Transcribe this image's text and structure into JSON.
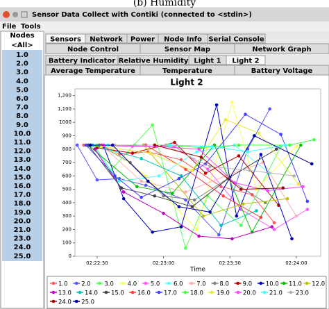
{
  "caption": "(b) Humidity",
  "window": {
    "title": "Sensor Data Collect with Contiki (connected to <stdin>)"
  },
  "menu": [
    "File",
    "Tools"
  ],
  "nodes": {
    "header": "Nodes",
    "all": "<All>",
    "items": [
      "1.0",
      "2.0",
      "3.0",
      "4.0",
      "5.0",
      "6.0",
      "7.0",
      "8.0",
      "9.0",
      "10.0",
      "11.0",
      "12.0",
      "13.0",
      "14.0",
      "15.0",
      "16.0",
      "17.0",
      "18.0",
      "19.0",
      "20.0",
      "21.0",
      "23.0",
      "24.0",
      "25.0"
    ]
  },
  "tabs": {
    "row1": [
      "Sensors",
      "Network",
      "Power",
      "Node Info",
      "Serial Console"
    ],
    "row2": [
      "Node Control",
      "Sensor Map",
      "Network Graph"
    ],
    "row3": [
      "Battery Indicator",
      "Relative Humidity",
      "Light 1",
      "Light 2"
    ],
    "row4": [
      "Average Temperature",
      "Temperature",
      "Battery Voltage"
    ]
  },
  "chart_data": {
    "type": "line",
    "title": "Light 2",
    "x_label": "Time",
    "xlim": [
      8540,
      8651
    ],
    "xticks": [
      {
        "value": 8550,
        "label": "02:22:30"
      },
      {
        "value": 8580,
        "label": "02:23:00"
      },
      {
        "value": 8610,
        "label": "02:23:30"
      },
      {
        "value": 8640,
        "label": "02:24:00"
      }
    ],
    "ylim": [
      0,
      1250
    ],
    "yticks": [
      0,
      100,
      200,
      300,
      400,
      500,
      600,
      700,
      800,
      900,
      1000,
      {
        "value": 1100,
        "label": "1,100"
      },
      {
        "value": 1200,
        "label": "1,200"
      }
    ],
    "grid": false,
    "series": [
      {
        "name": "1.0",
        "color": "#ff5555",
        "x": [
          8544,
          8553,
          8560,
          8573,
          8588,
          8606,
          8620,
          8630
        ],
        "values": [
          830,
          820,
          760,
          780,
          720,
          520,
          460,
          250
        ]
      },
      {
        "name": "2.0",
        "color": "#5555ff",
        "x": [
          8541,
          8550,
          8560,
          8572,
          8590,
          8605,
          8618,
          8628
        ],
        "values": [
          830,
          570,
          580,
          530,
          420,
          160,
          800,
          1100
        ]
      },
      {
        "name": "3.0",
        "color": "#55ff55",
        "x": [
          8549,
          8556,
          8575,
          8590,
          8600,
          8615,
          8633
        ],
        "values": [
          820,
          640,
          980,
          60,
          450,
          230,
          820
        ]
      },
      {
        "name": "4.0",
        "color": "#ffff55",
        "x": [
          8545,
          8557,
          8572,
          8595,
          8611,
          8622,
          8640
        ],
        "values": [
          830,
          790,
          600,
          200,
          1150,
          500,
          820
        ]
      },
      {
        "name": "5.0",
        "color": "#ff55ff",
        "x": [
          8547,
          8566,
          8585,
          8600,
          8615,
          8630,
          8645
        ],
        "values": [
          830,
          820,
          820,
          650,
          350,
          200,
          350
        ]
      },
      {
        "name": "6.0",
        "color": "#55ffff",
        "x": [
          8548,
          8560,
          8578,
          8595,
          8612,
          8628
        ],
        "values": [
          830,
          560,
          600,
          780,
          830,
          620
        ]
      },
      {
        "name": "7.0",
        "color": "#ffafaf",
        "x": [
          8552,
          8570,
          8590,
          8608,
          8625,
          8640
        ],
        "values": [
          830,
          560,
          480,
          600,
          700,
          300
        ]
      },
      {
        "name": "8.0",
        "color": "#808080",
        "x": [
          8551,
          8565,
          8580,
          8594,
          8609,
          8626
        ],
        "values": [
          830,
          700,
          450,
          420,
          580,
          400
        ]
      },
      {
        "name": "9.0",
        "color": "#c00000",
        "x": [
          8550,
          8566,
          8585,
          8599,
          8614,
          8632
        ],
        "values": [
          810,
          770,
          850,
          620,
          750,
          380
        ]
      },
      {
        "name": "10.0",
        "color": "#0000c0",
        "x": [
          8553,
          8562,
          8575,
          8588,
          8604,
          8613,
          8624,
          8638
        ],
        "values": [
          820,
          430,
          180,
          220,
          1130,
          300,
          760,
          130
        ]
      },
      {
        "name": "11.0",
        "color": "#00c000",
        "x": [
          8546,
          8568,
          8584,
          8603,
          8620,
          8642
        ],
        "values": [
          830,
          520,
          470,
          830,
          180,
          830
        ]
      },
      {
        "name": "12.0",
        "color": "#c0c000",
        "x": [
          8571,
          8598,
          8616,
          8636
        ],
        "values": [
          830,
          300,
          390,
          430
        ]
      },
      {
        "name": "13.0",
        "color": "#c000c0",
        "x": [
          8549,
          8562,
          8580,
          8596,
          8611,
          8629
        ],
        "values": [
          800,
          480,
          320,
          150,
          130,
          220
        ]
      },
      {
        "name": "14.0",
        "color": "#00c0c0",
        "x": [
          8548,
          8570,
          8588,
          8606,
          8622
        ],
        "values": [
          830,
          730,
          600,
          230,
          340
        ]
      },
      {
        "name": "15.0",
        "color": "#404040",
        "x": [
          8546,
          8561,
          8576,
          8593,
          8610,
          8631
        ],
        "values": [
          830,
          510,
          450,
          370,
          590,
          800
        ]
      },
      {
        "name": "16.0",
        "color": "#ff4040",
        "x": [
          8552,
          8572,
          8590,
          8607,
          8624
        ],
        "values": [
          830,
          830,
          650,
          450,
          290
        ]
      },
      {
        "name": "17.0",
        "color": "#4040ff",
        "x": [
          8545,
          8558,
          8570,
          8587,
          8599,
          8617,
          8633,
          8645
        ],
        "values": [
          830,
          600,
          440,
          580,
          690,
          1060,
          910,
          410
        ]
      },
      {
        "name": "18.0",
        "color": "#40ff40",
        "x": [
          8550,
          8567,
          8582,
          8597,
          8614,
          8637,
          8648
        ],
        "values": [
          830,
          830,
          830,
          810,
          830,
          830,
          870
        ]
      },
      {
        "name": "19.0",
        "color": "#e8e840",
        "x": [
          8552,
          8574,
          8593,
          8608,
          8623,
          8641
        ],
        "values": [
          820,
          770,
          640,
          1020,
          920,
          540
        ]
      },
      {
        "name": "20.0",
        "color": "#ff40ff",
        "x": [
          8553,
          8577,
          8596,
          8612,
          8627,
          8643
        ],
        "values": [
          830,
          820,
          800,
          550,
          490,
          520
        ]
      },
      {
        "name": "21.0",
        "color": "#40ffff",
        "x": [
          8555,
          8583,
          8602,
          8618,
          8635
        ],
        "values": [
          830,
          830,
          820,
          780,
          830
        ]
      },
      {
        "name": "23.0",
        "color": "#b0b0b0",
        "x": [
          8558,
          8581,
          8601,
          8619,
          8639
        ],
        "values": [
          830,
          830,
          670,
          640,
          600
        ]
      },
      {
        "name": "24.0",
        "color": "#a00000",
        "x": [
          8576,
          8597,
          8615,
          8634
        ],
        "values": [
          830,
          740,
          500,
          510
        ]
      },
      {
        "name": "25.0",
        "color": "#0000a0",
        "x": [
          8547,
          8557,
          8573,
          8587,
          8601,
          8621,
          8647
        ],
        "values": [
          830,
          830,
          560,
          370,
          330,
          900,
          690
        ]
      }
    ]
  }
}
